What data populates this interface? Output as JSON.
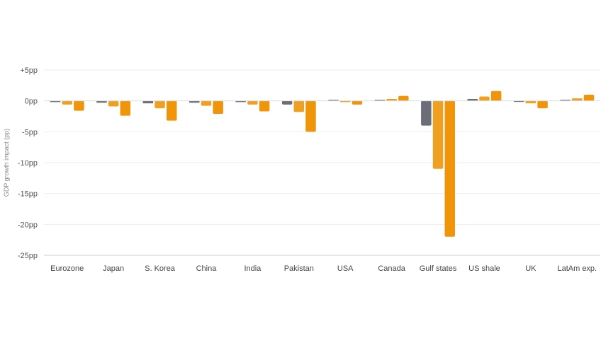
{
  "chart_data": {
    "type": "bar",
    "ylabel": "GDP growth impact (pp)",
    "ylim": [
      -25,
      5
    ],
    "yticks": [
      5,
      0,
      -5,
      -10,
      -15,
      -20,
      -25
    ],
    "ytick_labels": [
      "+5pp",
      "0pp",
      "-5pp",
      "-10pp",
      "-15pp",
      "-20pp",
      "-25pp"
    ],
    "categories": [
      "Eurozone",
      "Japan",
      "S. Korea",
      "China",
      "India",
      "Pakistan",
      "USA",
      "Canada",
      "Gulf states",
      "US shale",
      "UK",
      "LatAm exp."
    ],
    "series": [
      {
        "color": "#6b6e78",
        "values": [
          -0.2,
          -0.3,
          -0.4,
          -0.3,
          -0.2,
          -0.6,
          0.0,
          0.1,
          -4.0,
          0.3,
          -0.1,
          0.1
        ]
      },
      {
        "color": "#f0a020",
        "values": [
          -0.6,
          -0.9,
          -1.2,
          -0.8,
          -0.6,
          -1.8,
          -0.2,
          0.3,
          -11.0,
          0.7,
          -0.4,
          0.4
        ]
      },
      {
        "color": "#f0940a",
        "values": [
          -1.6,
          -2.4,
          -3.2,
          -2.1,
          -1.7,
          -5.0,
          -0.6,
          0.8,
          -22.0,
          1.6,
          -1.2,
          1.0
        ]
      }
    ],
    "grid": true,
    "legend": "none"
  }
}
